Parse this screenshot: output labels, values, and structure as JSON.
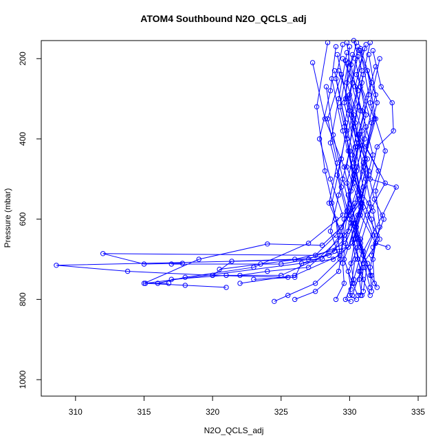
{
  "chart_data": {
    "type": "line",
    "title": "ATOM4 Southbound N2O_QCLS_adj",
    "xlabel": "N2O_QCLS_adj",
    "ylabel": "Pressure (mbar)",
    "xlim": [
      307.5,
      335.6
    ],
    "ylim": [
      1041,
      155
    ],
    "y_inverted": true,
    "x_ticks": [
      310,
      315,
      320,
      325,
      330,
      335
    ],
    "x_tick_labels": [
      "310",
      "315",
      "320",
      "325",
      "330",
      "335"
    ],
    "y_ticks": [
      200,
      400,
      600,
      800,
      1000
    ],
    "y_tick_labels": [
      "200",
      "400",
      "600",
      "800",
      "1000"
    ],
    "marker": "open-circle",
    "grid": false,
    "colors": {
      "series": "#0000ff",
      "axes": "#000000"
    },
    "series": [
      {
        "values": [
          [
            330.5,
            160
          ],
          [
            329.8,
            260
          ],
          [
            330.9,
            380
          ],
          [
            331.2,
            500
          ],
          [
            330.4,
            620
          ],
          [
            329.6,
            700
          ],
          [
            330.2,
            760
          ],
          [
            330.6,
            790
          ]
        ]
      },
      {
        "values": [
          [
            328.4,
            160
          ],
          [
            327.6,
            320
          ],
          [
            328.2,
            480
          ],
          [
            329.0,
            600
          ],
          [
            329.3,
            690
          ],
          [
            326.0,
            740
          ],
          [
            322.0,
            760
          ]
        ]
      },
      {
        "values": [
          [
            331.7,
            180
          ],
          [
            332.3,
            270
          ],
          [
            333.1,
            310
          ],
          [
            333.2,
            380
          ],
          [
            332.0,
            420
          ],
          [
            331.5,
            500
          ],
          [
            333.4,
            520
          ],
          [
            332.4,
            590
          ],
          [
            331.0,
            680
          ]
        ]
      },
      {
        "values": [
          [
            329.1,
            190
          ],
          [
            330.0,
            330
          ],
          [
            329.4,
            450
          ],
          [
            328.7,
            560
          ],
          [
            329.3,
            640
          ],
          [
            328.0,
            700
          ],
          [
            308.6,
            715
          ],
          [
            313.8,
            730
          ],
          [
            320.0,
            740
          ],
          [
            325.5,
            745
          ]
        ]
      },
      {
        "values": [
          [
            330.0,
            170
          ],
          [
            329.7,
            300
          ],
          [
            330.6,
            420
          ],
          [
            329.9,
            540
          ],
          [
            330.8,
            650
          ],
          [
            331.1,
            720
          ],
          [
            331.5,
            770
          ]
        ]
      },
      {
        "values": [
          [
            331.2,
            165
          ],
          [
            330.5,
            240
          ],
          [
            331.8,
            350
          ],
          [
            331.0,
            460
          ],
          [
            330.4,
            560
          ],
          [
            329.0,
            640
          ],
          [
            327.5,
            690
          ],
          [
            312.0,
            686
          ],
          [
            315.0,
            712
          ],
          [
            317.8,
            710
          ]
        ]
      },
      {
        "values": [
          [
            329.5,
            200
          ],
          [
            330.6,
            280
          ],
          [
            329.8,
            400
          ],
          [
            330.3,
            510
          ],
          [
            331.6,
            600
          ],
          [
            331.9,
            660
          ],
          [
            332.8,
            670
          ]
        ]
      },
      {
        "values": [
          [
            327.3,
            210
          ],
          [
            328.2,
            350
          ],
          [
            329.6,
            470
          ],
          [
            330.2,
            570
          ],
          [
            330.8,
            670
          ],
          [
            331.3,
            710
          ],
          [
            331.0,
            780
          ]
        ]
      },
      {
        "values": [
          [
            330.8,
            175
          ],
          [
            331.6,
            260
          ],
          [
            330.7,
            390
          ],
          [
            332.1,
            480
          ],
          [
            331.4,
            560
          ],
          [
            330.6,
            650
          ],
          [
            328.8,
            700
          ],
          [
            315.1,
            760
          ],
          [
            318.0,
            765
          ],
          [
            321.0,
            770
          ]
        ]
      },
      {
        "values": [
          [
            329.8,
            185
          ],
          [
            329.2,
            300
          ],
          [
            328.6,
            410
          ],
          [
            329.4,
            520
          ],
          [
            330.1,
            610
          ],
          [
            330.4,
            700
          ],
          [
            330.0,
            790
          ],
          [
            330.5,
            800
          ]
        ]
      },
      {
        "values": [
          [
            332.2,
            200
          ],
          [
            331.5,
            310
          ],
          [
            332.6,
            430
          ],
          [
            331.9,
            530
          ],
          [
            332.2,
            620
          ],
          [
            331.6,
            690
          ]
        ]
      },
      {
        "values": [
          [
            330.3,
            155
          ],
          [
            330.9,
            230
          ],
          [
            330.1,
            340
          ],
          [
            331.3,
            450
          ],
          [
            330.7,
            550
          ],
          [
            329.4,
            620
          ],
          [
            328.0,
            665
          ],
          [
            324.0,
            662
          ],
          [
            319.0,
            700
          ],
          [
            315.0,
            760
          ],
          [
            316.8,
            760
          ]
        ]
      },
      {
        "values": [
          [
            328.9,
            230
          ],
          [
            329.7,
            360
          ],
          [
            330.5,
            470
          ],
          [
            329.8,
            580
          ],
          [
            330.9,
            680
          ],
          [
            330.3,
            750
          ],
          [
            329.7,
            800
          ],
          [
            330.1,
            805
          ]
        ]
      },
      {
        "values": [
          [
            331.0,
            240
          ],
          [
            330.3,
            370
          ],
          [
            331.4,
            480
          ],
          [
            330.6,
            590
          ],
          [
            329.9,
            670
          ],
          [
            326.0,
            700
          ],
          [
            321.4,
            705
          ],
          [
            320.0,
            740
          ]
        ]
      },
      {
        "values": [
          [
            330.7,
            180
          ],
          [
            331.9,
            290
          ],
          [
            331.1,
            400
          ],
          [
            330.3,
            500
          ],
          [
            331.7,
            580
          ],
          [
            332.0,
            640
          ],
          [
            331.7,
            700
          ],
          [
            331.8,
            760
          ]
        ]
      },
      {
        "values": [
          [
            329.9,
            210
          ],
          [
            329.3,
            320
          ],
          [
            330.0,
            430
          ],
          [
            329.2,
            540
          ],
          [
            328.6,
            630
          ],
          [
            329.3,
            700
          ],
          [
            327.5,
            760
          ],
          [
            325.5,
            790
          ],
          [
            324.5,
            805
          ]
        ]
      },
      {
        "values": [
          [
            331.5,
            160
          ],
          [
            330.8,
            270
          ],
          [
            331.6,
            360
          ],
          [
            331.0,
            470
          ],
          [
            331.6,
            570
          ],
          [
            330.8,
            660
          ],
          [
            331.5,
            740
          ],
          [
            332.0,
            770
          ]
        ]
      },
      {
        "values": [
          [
            330.2,
            190
          ],
          [
            329.6,
            310
          ],
          [
            330.4,
            420
          ],
          [
            331.0,
            520
          ],
          [
            330.5,
            620
          ],
          [
            330.6,
            700
          ],
          [
            331.0,
            750
          ]
        ]
      },
      {
        "values": [
          [
            329.0,
            170
          ],
          [
            328.6,
            280
          ],
          [
            327.8,
            400
          ],
          [
            328.6,
            500
          ],
          [
            329.5,
            590
          ],
          [
            327.0,
            660
          ],
          [
            323.0,
            720
          ],
          [
            318.0,
            745
          ],
          [
            316.0,
            760
          ]
        ]
      },
      {
        "values": [
          [
            331.9,
            220
          ],
          [
            330.9,
            330
          ],
          [
            331.7,
            440
          ],
          [
            330.8,
            560
          ],
          [
            331.7,
            640
          ],
          [
            330.7,
            730
          ],
          [
            331.5,
            790
          ]
        ]
      },
      {
        "values": [
          [
            330.4,
            200
          ],
          [
            331.2,
            340
          ],
          [
            330.3,
            460
          ],
          [
            330.9,
            550
          ],
          [
            330.0,
            600
          ],
          [
            329.5,
            710
          ],
          [
            329.6,
            760
          ],
          [
            329.0,
            800
          ]
        ]
      },
      {
        "values": [
          [
            328.7,
            250
          ],
          [
            329.5,
            380
          ],
          [
            330.3,
            490
          ],
          [
            329.6,
            600
          ],
          [
            329.4,
            680
          ],
          [
            326.5,
            710
          ],
          [
            326.0,
            745
          ],
          [
            323.0,
            750
          ]
        ]
      },
      {
        "values": [
          [
            330.6,
            170
          ],
          [
            330.0,
            290
          ],
          [
            330.7,
            410
          ],
          [
            330.1,
            530
          ],
          [
            329.6,
            640
          ],
          [
            329.2,
            730
          ],
          [
            327.5,
            780
          ],
          [
            326.0,
            800
          ]
        ]
      },
      {
        "values": [
          [
            329.2,
            230
          ],
          [
            330.3,
            340
          ],
          [
            329.8,
            470
          ],
          [
            330.8,
            570
          ],
          [
            330.2,
            660
          ],
          [
            331.0,
            720
          ],
          [
            330.8,
            790
          ]
        ]
      },
      {
        "values": [
          [
            331.4,
            190
          ],
          [
            332.0,
            310
          ],
          [
            331.2,
            420
          ],
          [
            332.6,
            510
          ],
          [
            331.3,
            590
          ],
          [
            332.2,
            650
          ],
          [
            331.0,
            710
          ]
        ]
      },
      {
        "values": [
          [
            330.9,
            260
          ],
          [
            330.4,
            360
          ],
          [
            331.0,
            480
          ],
          [
            330.0,
            580
          ],
          [
            330.6,
            670
          ],
          [
            329.9,
            730
          ],
          [
            330.1,
            775
          ]
        ]
      },
      {
        "values": [
          [
            329.5,
            165
          ],
          [
            329.0,
            250
          ],
          [
            329.8,
            380
          ],
          [
            329.1,
            490
          ],
          [
            329.8,
            590
          ],
          [
            328.9,
            680
          ],
          [
            325.0,
            740
          ],
          [
            321.0,
            740
          ],
          [
            317.0,
            750
          ]
        ]
      },
      {
        "values": [
          [
            330.1,
            215
          ],
          [
            330.8,
            330
          ],
          [
            330.2,
            440
          ],
          [
            330.9,
            560
          ],
          [
            330.4,
            650
          ],
          [
            330.1,
            710
          ],
          [
            330.3,
            760
          ]
        ]
      },
      {
        "values": [
          [
            328.3,
            270
          ],
          [
            328.8,
            390
          ],
          [
            329.5,
            500
          ],
          [
            330.3,
            610
          ],
          [
            331.0,
            690
          ],
          [
            331.6,
            740
          ]
        ]
      },
      {
        "values": [
          [
            330.8,
            180
          ],
          [
            331.4,
            290
          ],
          [
            330.6,
            390
          ],
          [
            331.4,
            490
          ],
          [
            330.8,
            590
          ],
          [
            331.9,
            660
          ],
          [
            331.5,
            720
          ],
          [
            331.6,
            780
          ]
        ]
      },
      {
        "values": [
          [
            329.7,
            205
          ],
          [
            330.6,
            320
          ],
          [
            329.9,
            430
          ],
          [
            330.7,
            540
          ],
          [
            329.9,
            630
          ],
          [
            327.0,
            720
          ],
          [
            324.0,
            730
          ],
          [
            322.0,
            740
          ]
        ]
      },
      {
        "values": [
          [
            331.1,
            175
          ],
          [
            330.4,
            270
          ],
          [
            331.2,
            370
          ],
          [
            330.5,
            480
          ],
          [
            331.0,
            570
          ],
          [
            330.3,
            650
          ],
          [
            330.8,
            730
          ],
          [
            330.2,
            790
          ]
        ]
      },
      {
        "values": [
          [
            329.4,
            240
          ],
          [
            328.4,
            350
          ],
          [
            329.1,
            460
          ],
          [
            328.5,
            560
          ],
          [
            329.6,
            650
          ],
          [
            328.5,
            690
          ],
          [
            323.5,
            712
          ],
          [
            320.5,
            725
          ]
        ]
      },
      {
        "values": [
          [
            330.6,
            195
          ],
          [
            329.9,
            300
          ],
          [
            330.5,
            410
          ],
          [
            329.8,
            510
          ],
          [
            330.4,
            610
          ],
          [
            331.0,
            690
          ],
          [
            330.7,
            750
          ],
          [
            330.9,
            790
          ]
        ]
      },
      {
        "values": [
          [
            331.3,
            230
          ],
          [
            331.9,
            350
          ],
          [
            331.1,
            450
          ],
          [
            331.8,
            550
          ],
          [
            332.5,
            600
          ],
          [
            331.7,
            670
          ]
        ]
      },
      {
        "values": [
          [
            329.8,
            160
          ],
          [
            330.2,
            260
          ],
          [
            329.6,
            370
          ],
          [
            330.2,
            470
          ],
          [
            330.9,
            560
          ],
          [
            329.7,
            660
          ],
          [
            327.0,
            700
          ],
          [
            325.0,
            712
          ],
          [
            317.0,
            712
          ]
        ]
      }
    ]
  }
}
